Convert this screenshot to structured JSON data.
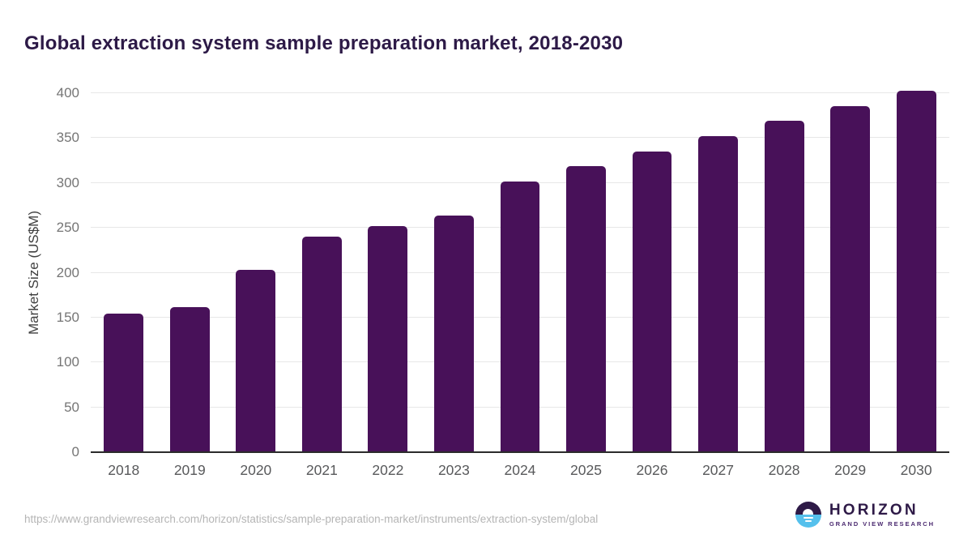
{
  "title": "Global extraction system sample preparation market, 2018-2030",
  "chart_data": {
    "type": "bar",
    "title": "Global extraction system sample preparation market, 2018-2030",
    "categories": [
      "2018",
      "2019",
      "2020",
      "2021",
      "2022",
      "2023",
      "2024",
      "2025",
      "2026",
      "2027",
      "2028",
      "2029",
      "2030"
    ],
    "values": [
      154,
      162,
      203,
      240,
      252,
      264,
      302,
      319,
      335,
      352,
      369,
      386,
      403
    ],
    "xlabel": "",
    "ylabel": "Market Size (US$M)",
    "ylim": [
      0,
      400
    ],
    "yticks": [
      0,
      50,
      100,
      150,
      200,
      250,
      300,
      350,
      400
    ],
    "grid": true,
    "legend": false,
    "bar_color": "#481159"
  },
  "colors": {
    "title_text": "#2d1a47",
    "bar": "#481159",
    "gridline": "#e7e7e7",
    "axis_line": "#2b2b2b",
    "tick_text": "#757575",
    "x_label_text": "#58595b",
    "url_text": "#b5b5b5",
    "logo_purple": "#2e1a47",
    "logo_blue": "#55c0ec"
  },
  "footer": {
    "source_url": "https://www.grandviewresearch.com/horizon/statistics/sample-preparation-market/instruments/extraction-system/global",
    "logo": {
      "brand": "HORIZON",
      "tagline": "GRAND VIEW RESEARCH"
    }
  }
}
